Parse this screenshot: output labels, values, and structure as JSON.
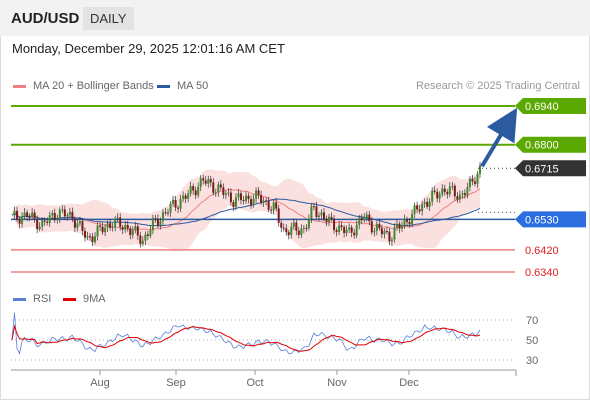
{
  "header": {
    "symbol": "AUD/USD",
    "timeframe": "DAILY"
  },
  "timestamp": "Monday, December 29, 2025 12:01:16 AM CET",
  "credit": "Research © 2025 Trading Central",
  "legend_main": [
    {
      "label": "MA 20 + Bollinger Bands",
      "color": "#f08080"
    },
    {
      "label": "MA 50",
      "color": "#2c5aa0"
    }
  ],
  "legend_rsi": [
    {
      "label": "RSI",
      "color": "#5b7fd6"
    },
    {
      "label": "9MA",
      "color": "#e00000"
    }
  ],
  "chart_data": {
    "type": "candlestick",
    "price_range": [
      0.63,
      0.696
    ],
    "x_ticks": [
      "Aug",
      "Sep",
      "Oct",
      "Nov",
      "Dec"
    ],
    "levels": [
      {
        "label": "0.6940",
        "value": 0.694,
        "kind": "resistance"
      },
      {
        "label": "0.6800",
        "value": 0.68,
        "kind": "resistance"
      },
      {
        "label": "0.6715",
        "value": 0.6715,
        "kind": "last"
      },
      {
        "label": "0.6530",
        "value": 0.653,
        "kind": "pivot"
      },
      {
        "label": "0.6420",
        "value": 0.642,
        "kind": "support"
      },
      {
        "label": "0.6340",
        "value": 0.634,
        "kind": "support"
      }
    ],
    "arrow": {
      "from": 0.6715,
      "to": 0.694
    },
    "rsi_ticks": [
      "70",
      "50",
      "30"
    ],
    "rsi_range": [
      20,
      80
    ]
  }
}
